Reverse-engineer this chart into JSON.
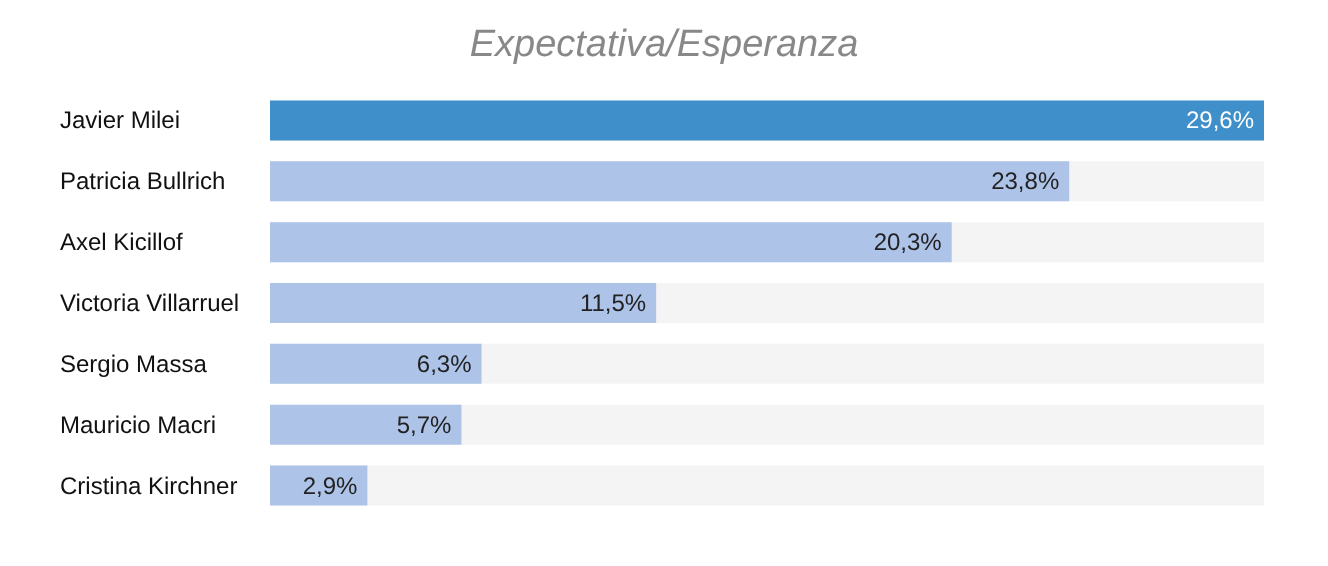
{
  "chart_data": {
    "type": "bar",
    "orientation": "horizontal",
    "title": "Expectativa/Esperanza",
    "categories": [
      "Javier Milei",
      "Patricia Bullrich",
      "Axel Kicillof",
      "Victoria Villarruel",
      "Sergio Massa",
      "Mauricio Macri",
      "Cristina Kirchner"
    ],
    "values": [
      29.6,
      23.8,
      20.3,
      11.5,
      6.3,
      5.7,
      2.9
    ],
    "colors": [
      "#3f8fcb",
      "#adc3e8",
      "#adc3e8",
      "#adc3e8",
      "#adc3e8",
      "#adc3e8",
      "#adc3e8"
    ],
    "value_labels": [
      "29,6%",
      "23,8%",
      "20,3%",
      "11,5%",
      "6,3%",
      "5,7%",
      "2,9%"
    ]
  }
}
